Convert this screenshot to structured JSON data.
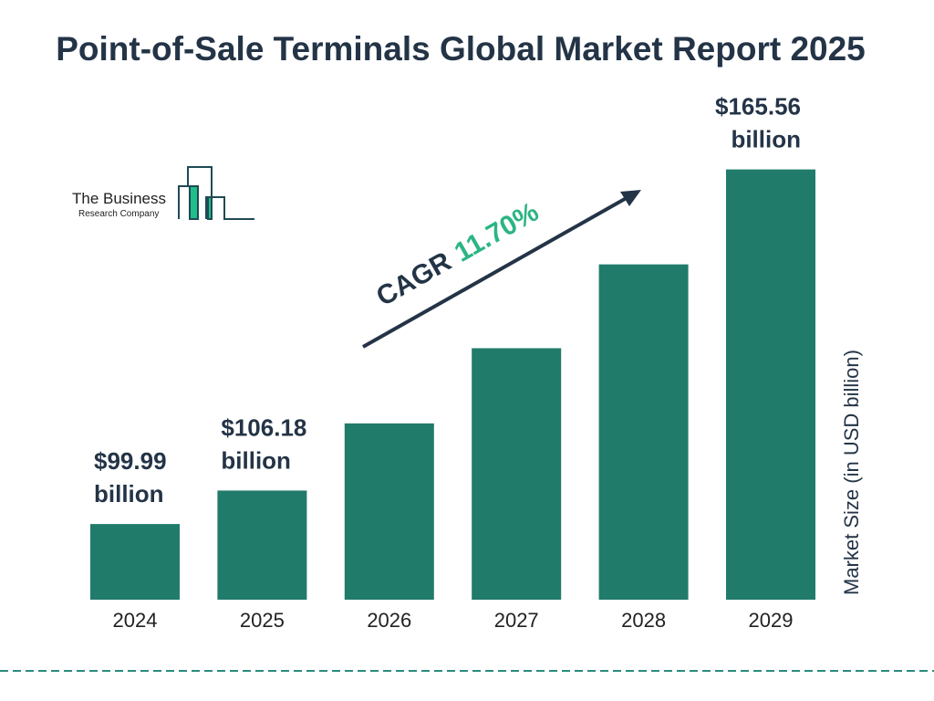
{
  "title": "Point-of-Sale Terminals Global Market Report 2025",
  "logo": {
    "line1": "The Business",
    "line2": "Research Company"
  },
  "colors": {
    "bar": "#217b6b",
    "text": "#243447",
    "cagr": "#2bb583",
    "logo_green": "#1fbf8a",
    "dash": "#2a8c7e"
  },
  "chart_data": {
    "type": "bar",
    "title": "Point-of-Sale Terminals Global Market Report 2025",
    "categories": [
      "2024",
      "2025",
      "2026",
      "2027",
      "2028",
      "2029"
    ],
    "values": [
      99.99,
      106.18,
      118.6,
      132.5,
      148.0,
      165.56
    ],
    "data_labels": [
      "$99.99 billion",
      "$106.18 billion",
      null,
      null,
      null,
      "$165.56 billion"
    ],
    "ylabel": "Market Size (in USD billion)",
    "xlabel": "",
    "ylim": [
      86,
      166
    ],
    "grid": false,
    "annotation": {
      "prefix": "CAGR",
      "value": "11.70%"
    }
  }
}
